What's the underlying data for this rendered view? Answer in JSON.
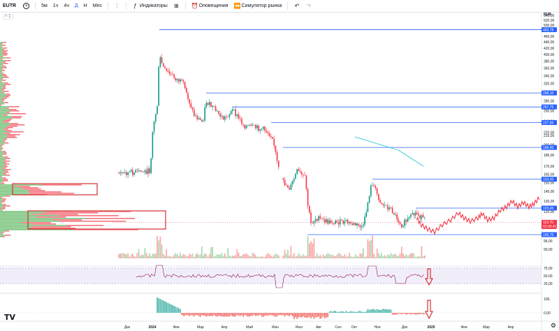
{
  "toolbar": {
    "symbol": "EUTR",
    "plus": "+",
    "intervals": [
      "5м",
      "1ч",
      "4ч",
      "Д",
      "Н",
      "Мес"
    ],
    "active_interval": "Д",
    "indicators": "Индикаторы",
    "alerts": "Оповещения",
    "replay": "Симулятор рынка"
  },
  "legend_toggle": "˅ 1",
  "currency": "RUB",
  "price_axis": [
    "540,00",
    "520,00",
    "500,00",
    "480,00",
    "460,00",
    "440,00",
    "420,00",
    "400,00",
    "380,00",
    "360,00",
    "340,00",
    "320,00",
    "300,00",
    "280,00",
    "260,00",
    "240,00",
    "220,00",
    "215,00",
    "200,00",
    "185,00",
    "170,00",
    "160,00",
    "150,00",
    "140,00",
    "130,00",
    "120,00",
    "110,00",
    "100,00",
    "96,00",
    "90,00"
  ],
  "level_tags": [
    {
      "label": "483,78",
      "color": "#2962ff"
    },
    {
      "label": "298,10",
      "color": "#2962ff"
    },
    {
      "label": "267,75",
      "color": "#2962ff"
    },
    {
      "label": "237,65",
      "color": "#2962ff"
    },
    {
      "label": "196,45",
      "color": "#2962ff"
    },
    {
      "label": "154,00",
      "color": "#2962ff"
    },
    {
      "label": "123,45",
      "color": "#2962ff"
    },
    {
      "label": "110,70",
      "color": "#f23645"
    },
    {
      "label": "01:04:41",
      "color": "#f23645"
    },
    {
      "label": "100,75",
      "color": "#2962ff"
    }
  ],
  "rsi_axis": [
    "75,00",
    "50,00",
    "25,00"
  ],
  "macd_axis": [
    "100,",
    "0,00"
  ],
  "time_axis": [
    "Дек",
    "2024",
    "Фев",
    "Мар",
    "Апр",
    "Май",
    "Июн",
    "Июл",
    "Авг",
    "Сен",
    "Окт",
    "Ноя",
    "Дек",
    "2025",
    "Фев",
    "Мар",
    "Апр"
  ],
  "colors": {
    "up": "#089981",
    "down": "#f23645",
    "level": "#2962ff",
    "rsi": "#7e57c2",
    "projection": "#f23645"
  },
  "icons": [
    "chart-type-icon",
    "indicators-icon",
    "templates-icon",
    "alert-icon",
    "replay-icon",
    "undo-icon",
    "redo-icon",
    "settings-gear-icon"
  ],
  "logo": "TV"
}
